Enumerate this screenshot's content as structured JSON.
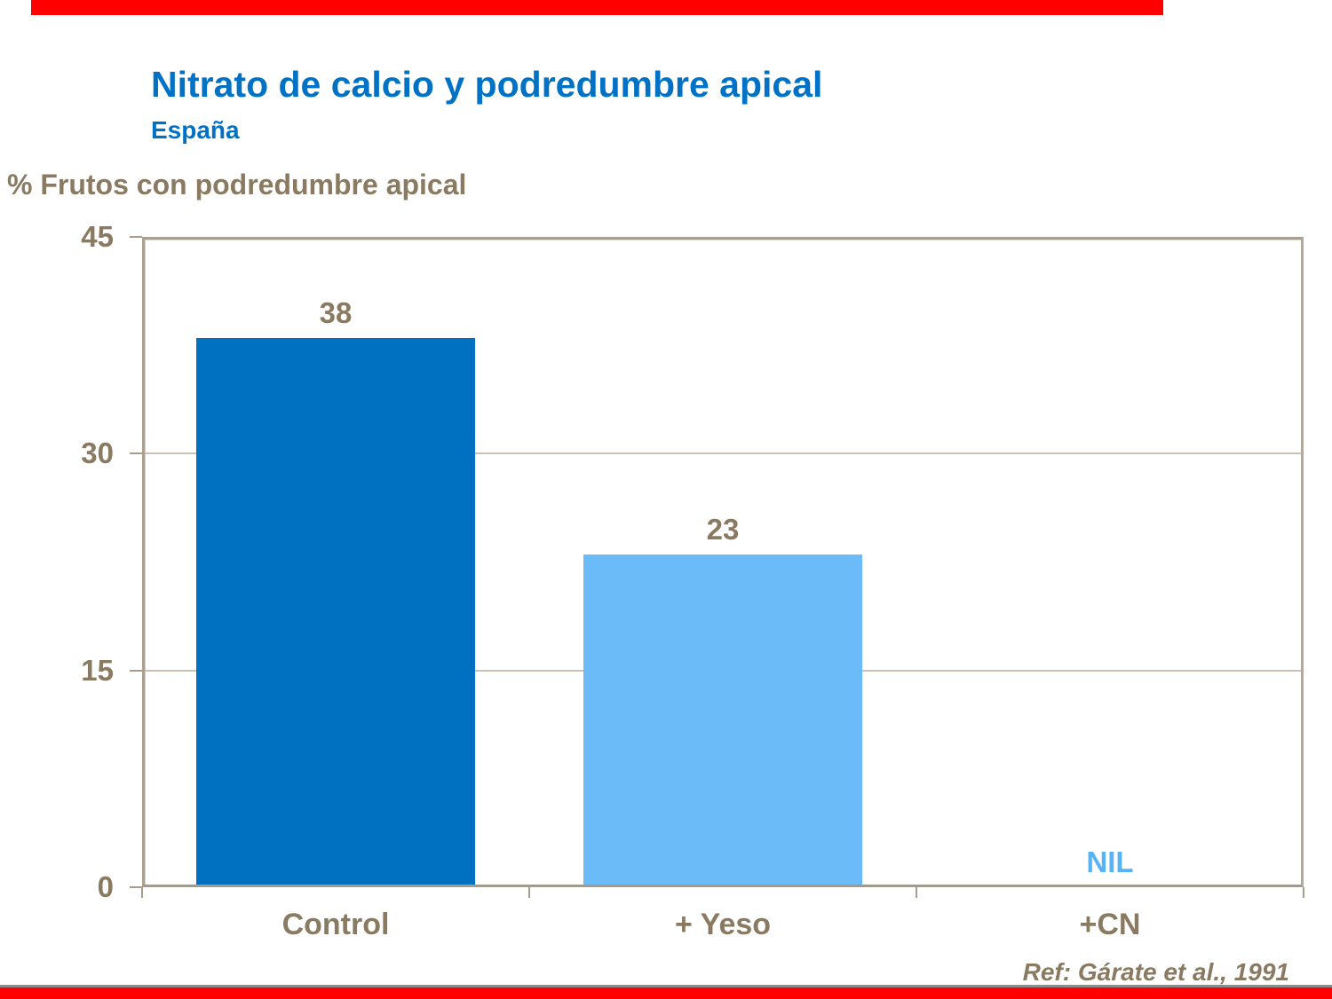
{
  "header": {
    "title": "Nitrato de calcio y podredumbre apical",
    "subtitle": "España"
  },
  "footer": {
    "reference": "Ref: Gárate et al., 1991"
  },
  "colors": {
    "accent_red": "#fe0000",
    "title_blue": "#0072c6",
    "text_brown": "#8a7a62",
    "axis_frame_tan": "#ab9f90",
    "gridline_tan": "#ccc2b4",
    "bar_dark_blue": "#0070c0",
    "bar_light_blue": "#6bbbf8",
    "nil_text_blue": "#55b3f6",
    "divider_gray": "#8c8c8c"
  },
  "chart_data": {
    "type": "bar",
    "title": "Nitrato de calcio y podredumbre apical",
    "subtitle": "España",
    "ylabel": "% Frutos con podredumbre apical",
    "xlabel": "",
    "categories": [
      "Control",
      "+ Yeso",
      "+CN"
    ],
    "values": [
      38,
      23,
      0
    ],
    "value_labels": [
      "38",
      "23",
      "NIL"
    ],
    "bar_colors": [
      "#0070c0",
      "#6bbbf8",
      null
    ],
    "ylim": [
      0,
      45
    ],
    "yticks": [
      0,
      15,
      30,
      45
    ],
    "grid": "horizontal",
    "legend": "none"
  }
}
